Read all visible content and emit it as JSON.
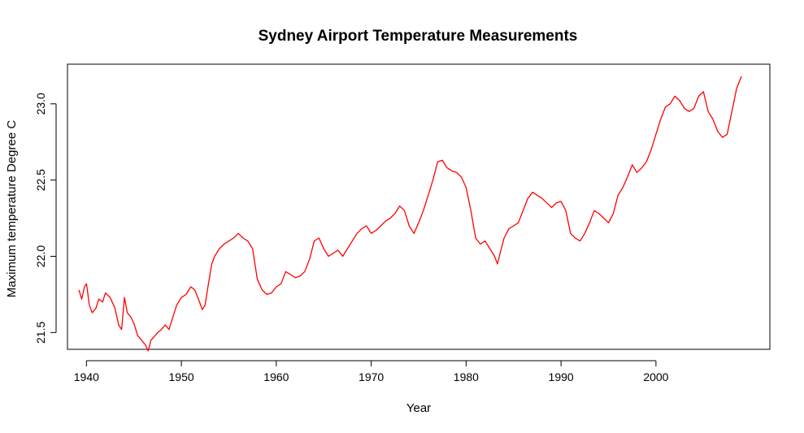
{
  "chart_data": {
    "type": "line",
    "title": "Sydney Airport Temperature Measurements",
    "xlabel": "Year",
    "ylabel": "Maximum temperature Degree C",
    "xlim": [
      1938.0,
      2012.0
    ],
    "ylim": [
      21.39,
      23.26
    ],
    "xticks": [
      1940,
      1950,
      1960,
      1970,
      1980,
      1990,
      2000
    ],
    "xtick_labels": [
      "1940",
      "1950",
      "1960",
      "1970",
      "1980",
      "1990",
      "2000"
    ],
    "yticks": [
      21.5,
      22.0,
      22.5,
      23.0
    ],
    "ytick_labels": [
      "21.5",
      "22.0",
      "22.5",
      "23.0"
    ],
    "grid": false,
    "legend": "none",
    "series": [
      {
        "color": "#ff0000",
        "x": [
          1939.2,
          1939.5,
          1939.8,
          1940.0,
          1940.3,
          1940.6,
          1941.0,
          1941.3,
          1941.7,
          1942.0,
          1942.5,
          1943.0,
          1943.4,
          1943.7,
          1944.0,
          1944.3,
          1944.7,
          1945.0,
          1945.4,
          1945.8,
          1946.2,
          1946.5,
          1946.8,
          1947.1,
          1947.5,
          1947.9,
          1948.3,
          1948.7,
          1949.0,
          1949.5,
          1950.0,
          1950.5,
          1951.0,
          1951.4,
          1951.8,
          1952.2,
          1952.5,
          1952.8,
          1953.2,
          1953.5,
          1954.0,
          1954.5,
          1955.0,
          1955.5,
          1956.0,
          1956.5,
          1957.0,
          1957.5,
          1958.0,
          1958.5,
          1959.0,
          1959.5,
          1960.0,
          1960.5,
          1961.0,
          1961.5,
          1962.0,
          1962.5,
          1963.0,
          1963.5,
          1964.0,
          1964.5,
          1965.0,
          1965.5,
          1966.0,
          1966.5,
          1967.0,
          1967.5,
          1968.0,
          1968.5,
          1969.0,
          1969.5,
          1970.0,
          1970.5,
          1971.0,
          1971.5,
          1972.0,
          1972.5,
          1973.0,
          1973.5,
          1974.0,
          1974.5,
          1975.0,
          1975.5,
          1976.0,
          1976.5,
          1977.0,
          1977.5,
          1978.0,
          1978.5,
          1979.0,
          1979.5,
          1980.0,
          1980.5,
          1981.0,
          1981.5,
          1982.0,
          1982.5,
          1983.0,
          1983.3,
          1983.7,
          1984.0,
          1984.5,
          1985.0,
          1985.5,
          1986.0,
          1986.5,
          1987.0,
          1987.5,
          1988.0,
          1988.5,
          1989.0,
          1989.5,
          1990.0,
          1990.5,
          1991.0,
          1991.5,
          1992.0,
          1992.5,
          1993.0,
          1993.5,
          1994.0,
          1994.5,
          1995.0,
          1995.5,
          1996.0,
          1996.5,
          1997.0,
          1997.5,
          1998.0,
          1998.5,
          1999.0,
          1999.5,
          2000.0,
          2000.5,
          2001.0,
          2001.5,
          2002.0,
          2002.5,
          2003.0,
          2003.5,
          2004.0,
          2004.5,
          2005.0,
          2005.5,
          2006.0,
          2006.5,
          2007.0,
          2007.5,
          2008.0,
          2008.5,
          2009.0
        ],
        "y": [
          21.78,
          21.72,
          21.8,
          21.82,
          21.68,
          21.63,
          21.66,
          21.72,
          21.7,
          21.76,
          21.73,
          21.66,
          21.55,
          21.52,
          21.73,
          21.63,
          21.6,
          21.56,
          21.48,
          21.45,
          21.42,
          21.38,
          21.45,
          21.47,
          21.5,
          21.52,
          21.55,
          21.52,
          21.58,
          21.68,
          21.73,
          21.75,
          21.8,
          21.78,
          21.72,
          21.65,
          21.68,
          21.8,
          21.95,
          22.0,
          22.05,
          22.08,
          22.1,
          22.12,
          22.15,
          22.12,
          22.1,
          22.05,
          21.85,
          21.78,
          21.75,
          21.76,
          21.8,
          21.82,
          21.9,
          21.88,
          21.86,
          21.87,
          21.9,
          21.98,
          22.1,
          22.12,
          22.05,
          22.0,
          22.02,
          22.04,
          22.0,
          22.05,
          22.1,
          22.15,
          22.18,
          22.2,
          22.15,
          22.17,
          22.2,
          22.23,
          22.25,
          22.28,
          22.33,
          22.3,
          22.2,
          22.15,
          22.22,
          22.3,
          22.4,
          22.5,
          22.62,
          22.63,
          22.58,
          22.56,
          22.55,
          22.52,
          22.45,
          22.3,
          22.12,
          22.08,
          22.1,
          22.05,
          22.0,
          21.95,
          22.05,
          22.12,
          22.18,
          22.2,
          22.22,
          22.3,
          22.38,
          22.42,
          22.4,
          22.38,
          22.35,
          22.32,
          22.35,
          22.36,
          22.3,
          22.15,
          22.12,
          22.1,
          22.15,
          22.22,
          22.3,
          22.28,
          22.25,
          22.22,
          22.28,
          22.4,
          22.45,
          22.52,
          22.6,
          22.55,
          22.58,
          22.62,
          22.7,
          22.8,
          22.9,
          22.98,
          23.0,
          23.05,
          23.02,
          22.97,
          22.95,
          22.97,
          23.05,
          23.08,
          22.95,
          22.9,
          22.82,
          22.78,
          22.8,
          22.95,
          23.1,
          23.18
        ]
      }
    ]
  }
}
